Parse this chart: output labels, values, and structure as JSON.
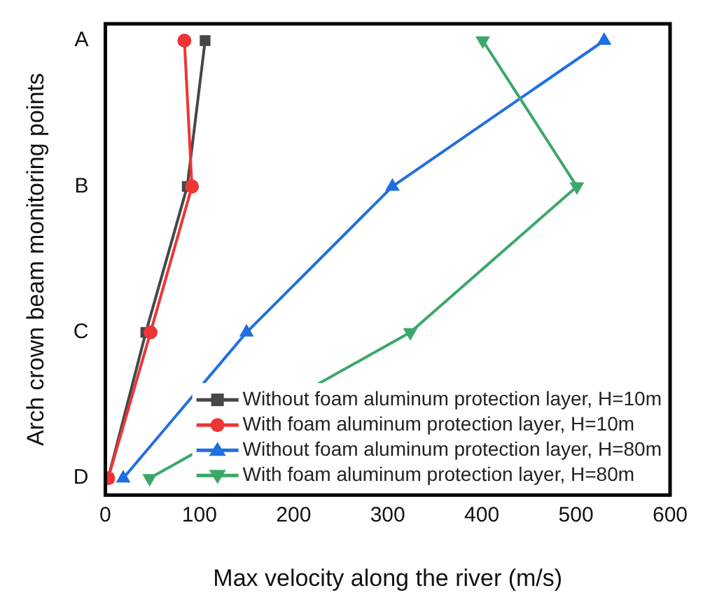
{
  "chart_data": {
    "type": "line",
    "orientation": "horizontal",
    "xlabel": "Max velocity along the river (m/s)",
    "ylabel": "Arch crown beam monitoring points",
    "categories": [
      "A",
      "B",
      "C",
      "D"
    ],
    "series": [
      {
        "name": "Without foam aluminum protection layer, H=10m",
        "color": "#474747",
        "marker": "square",
        "values": [
          106,
          87,
          43,
          3
        ]
      },
      {
        "name": "With foam aluminum protection layer, H=10m",
        "color": "#ee3535",
        "marker": "circle",
        "values": [
          84,
          92,
          48,
          3
        ]
      },
      {
        "name": "Without foam aluminum protection layer, H=80m",
        "color": "#1f6fe0",
        "marker": "triangle",
        "values": [
          530,
          305,
          150,
          19
        ]
      },
      {
        "name": "With foam aluminum protection layer, H=80m",
        "color": "#3aa86a",
        "marker": "triangle-down",
        "values": [
          401,
          501,
          324,
          47
        ]
      }
    ],
    "xlim": [
      0,
      600
    ],
    "xticks": [
      0,
      100,
      200,
      300,
      400,
      500,
      600
    ],
    "grid": false,
    "legend": "bottom right",
    "line_style": "solid"
  }
}
